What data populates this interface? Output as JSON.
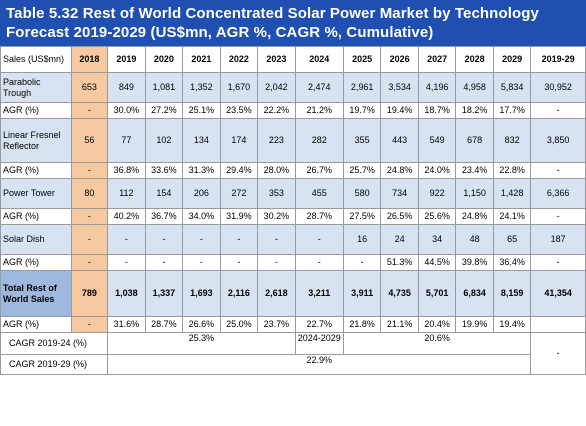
{
  "title_line1": "Table 5.32 Rest of World Concentrated Solar Power Market by Technology",
  "title_line2": "Forecast 2019-2029 (US$mn, AGR %, CAGR %, Cumulative)",
  "header": [
    "Sales (US$mn)",
    "2018",
    "2019",
    "2020",
    "2021",
    "2022",
    "2023",
    "2024",
    "2025",
    "2026",
    "2027",
    "2028",
    "2029",
    "2019-29"
  ],
  "rows": [
    {
      "type": "data",
      "label": "Parabolic Trough",
      "values": [
        "653",
        "849",
        "1,081",
        "1,352",
        "1,670",
        "2,042",
        "2,474",
        "2,961",
        "3,534",
        "4,196",
        "4,958",
        "5,834",
        "30,952"
      ]
    },
    {
      "type": "agr",
      "label": "AGR (%)",
      "values": [
        "-",
        "30.0%",
        "27.2%",
        "25.1%",
        "23.5%",
        "22.2%",
        "21.2%",
        "19.7%",
        "19.4%",
        "18.7%",
        "18.2%",
        "17.7%",
        "-"
      ]
    },
    {
      "type": "data",
      "label": "Linear Fresnel Reflector",
      "values": [
        "56",
        "77",
        "102",
        "134",
        "174",
        "223",
        "282",
        "355",
        "443",
        "549",
        "678",
        "832",
        "3,850"
      ]
    },
    {
      "type": "agr",
      "label": "AGR (%)",
      "values": [
        "-",
        "36.8%",
        "33.6%",
        "31.3%",
        "29.4%",
        "28.0%",
        "26.7%",
        "25.7%",
        "24.8%",
        "24.0%",
        "23.4%",
        "22.8%",
        "-"
      ]
    },
    {
      "type": "data",
      "label": "Power Tower",
      "values": [
        "80",
        "112",
        "154",
        "206",
        "272",
        "353",
        "455",
        "580",
        "734",
        "922",
        "1,150",
        "1,428",
        "6,366"
      ]
    },
    {
      "type": "agr",
      "label": "AGR (%)",
      "values": [
        "-",
        "40.2%",
        "36.7%",
        "34.0%",
        "31.9%",
        "30.2%",
        "28.7%",
        "27.5%",
        "26.5%",
        "25.6%",
        "24.8%",
        "24.1%",
        "-"
      ]
    },
    {
      "type": "data",
      "label": "Solar Dish",
      "values": [
        "-",
        "-",
        "-",
        "-",
        "-",
        "-",
        "-",
        "16",
        "24",
        "34",
        "48",
        "65",
        "187"
      ]
    },
    {
      "type": "agr",
      "label": "AGR (%)",
      "values": [
        "-",
        "-",
        "-",
        "-",
        "-",
        "-",
        "-",
        "-",
        "51.3%",
        "44.5%",
        "39.8%",
        "36.4%",
        "-"
      ]
    },
    {
      "type": "total",
      "label": "Total Rest of World Sales",
      "values": [
        "789",
        "1,038",
        "1,337",
        "1,693",
        "2,116",
        "2,618",
        "3,211",
        "3,911",
        "4,735",
        "5,701",
        "6,834",
        "8,159",
        "41,354"
      ]
    },
    {
      "type": "agr",
      "label": "AGR (%)",
      "values": [
        "-",
        "31.6%",
        "28.7%",
        "26.6%",
        "25.0%",
        "23.7%",
        "22.7%",
        "21.8%",
        "21.1%",
        "20.4%",
        "19.9%",
        "19.4%",
        ""
      ]
    }
  ],
  "cagr_1924_label": "CAGR 2019-24 (%)",
  "cagr_1924_value": "25.3%",
  "cagr_2429_label": "2024-2029",
  "cagr_2429_value": "20.6%",
  "cagr_1929_label": "CAGR 2019-29 (%)",
  "cagr_1929_value": "22.9%",
  "cagr_cum": "-"
}
